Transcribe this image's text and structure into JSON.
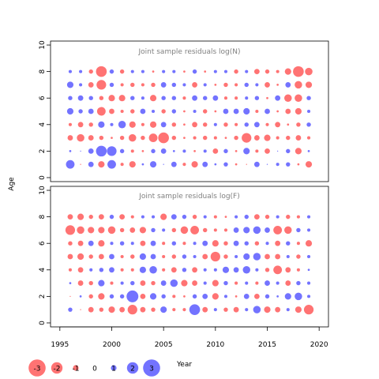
{
  "chart_data": [
    {
      "type": "scatter",
      "title": "Joint sample residuals log(N)",
      "ylabel": "Age",
      "ylim": [
        -0.3,
        10.3
      ],
      "yticks": [
        0,
        2,
        4,
        6,
        8,
        10
      ],
      "xlim": [
        1994.1,
        2020.9
      ],
      "grid": false,
      "years": [
        1996,
        1997,
        1998,
        1999,
        2000,
        2001,
        2002,
        2003,
        2004,
        2005,
        2006,
        2007,
        2008,
        2009,
        2010,
        2011,
        2012,
        2013,
        2014,
        2015,
        2016,
        2017,
        2018,
        2019
      ],
      "ages": [
        1,
        2,
        3,
        4,
        5,
        6,
        7,
        8
      ],
      "residuals": [
        [
          0.8,
          -0.1,
          0.5,
          -0.6,
          0.8,
          -0.3,
          -0.6,
          0.2,
          0.6,
          0.1,
          0.5,
          -0.3,
          -0.6,
          0.5,
          0.2,
          0.4,
          -0.2,
          -0.1,
          0.5,
          0.1,
          0.3,
          0.4,
          -0.2,
          -0.6
        ],
        [
          0.2,
          0.1,
          0.5,
          1.0,
          0.9,
          0.4,
          -0.3,
          -0.2,
          0.4,
          0.5,
          0.2,
          0.3,
          -0.2,
          0.3,
          -0.5,
          0.4,
          -0.2,
          0.6,
          -0.3,
          -0.5,
          0.1,
          0.4,
          -0.6,
          0.2
        ],
        [
          -0.5,
          -0.7,
          -0.5,
          -0.4,
          -0.2,
          -0.4,
          -0.7,
          -0.4,
          -0.8,
          -1.0,
          -0.4,
          -0.2,
          -0.3,
          -0.4,
          -0.3,
          -0.2,
          -0.4,
          -0.9,
          -0.5,
          -0.6,
          -0.3,
          -0.4,
          -0.5,
          -0.3
        ],
        [
          -0.3,
          -0.5,
          -0.4,
          0.6,
          0.3,
          0.7,
          -0.6,
          -0.3,
          -0.6,
          0.5,
          -0.4,
          -0.2,
          -0.5,
          -0.4,
          0.3,
          -0.4,
          -0.3,
          0.4,
          0.5,
          -0.3,
          -0.5,
          -0.2,
          -0.4,
          0.4
        ],
        [
          0.6,
          0.4,
          0.5,
          -0.8,
          -0.5,
          -0.3,
          -0.4,
          0.5,
          0.3,
          -0.4,
          0.4,
          -0.2,
          0.3,
          -0.4,
          -0.2,
          0.5,
          0.5,
          0.6,
          -0.3,
          0.5,
          -0.2,
          -0.5,
          -0.6,
          0.3
        ],
        [
          0.4,
          0.5,
          0.4,
          -0.4,
          -0.6,
          -0.6,
          0.4,
          0.3,
          -0.6,
          0.4,
          0.4,
          -0.3,
          0.5,
          0.4,
          0.5,
          -0.3,
          -0.3,
          0.3,
          0.4,
          -0.2,
          0.5,
          -0.7,
          -0.7,
          0.4
        ],
        [
          0.6,
          0.3,
          -0.5,
          -0.9,
          0.4,
          -0.3,
          -0.4,
          -0.3,
          -0.4,
          0.5,
          0.4,
          0.3,
          -0.5,
          0.3,
          -0.2,
          -0.4,
          -0.3,
          0.4,
          0.3,
          -0.5,
          -0.2,
          0.5,
          -0.7,
          -0.6
        ],
        [
          0.3,
          0.3,
          -0.4,
          -1.0,
          0.4,
          -0.4,
          0.3,
          0.3,
          -0.2,
          0.3,
          0.3,
          -0.2,
          0.4,
          -0.2,
          0.3,
          0.3,
          -0.4,
          0.3,
          -0.5,
          -0.4,
          -0.3,
          -0.6,
          -1.0,
          -0.7
        ]
      ]
    },
    {
      "type": "scatter",
      "title": "Joint sample residuals log(F)",
      "xlabel": "Year",
      "ylim": [
        -0.3,
        10.3
      ],
      "yticks": [
        0,
        2,
        4,
        6,
        8,
        10
      ],
      "xlim": [
        1994.1,
        2020.9
      ],
      "xticks": [
        1995,
        2000,
        2005,
        2010,
        2015,
        2020
      ],
      "grid": false,
      "years": [
        1996,
        1997,
        1998,
        1999,
        2000,
        2001,
        2002,
        2003,
        2004,
        2005,
        2006,
        2007,
        2008,
        2009,
        2010,
        2011,
        2012,
        2013,
        2014,
        2015,
        2016,
        2017,
        2018,
        2019
      ],
      "ages": [
        1,
        2,
        3,
        4,
        5,
        6,
        7,
        8
      ],
      "residuals": [
        [
          0.4,
          -0.1,
          -0.5,
          -0.4,
          -0.6,
          -0.5,
          -0.9,
          -0.5,
          -0.4,
          0.6,
          -0.3,
          -0.3,
          1.0,
          -0.5,
          0.3,
          -0.4,
          -0.5,
          0.3,
          0.7,
          -0.6,
          -0.5,
          0.3,
          -0.6,
          -0.9
        ],
        [
          -0.1,
          0.2,
          -0.4,
          -0.6,
          0.4,
          0.4,
          1.1,
          -0.5,
          0.6,
          0.4,
          -0.3,
          -0.2,
          0.4,
          0.5,
          -0.6,
          0.3,
          -0.2,
          0.5,
          -0.5,
          0.4,
          0.2,
          0.6,
          0.7,
          0.3
        ],
        [
          0.2,
          -0.5,
          -0.4,
          0.6,
          -0.3,
          0.3,
          0.4,
          -0.5,
          -0.4,
          0.5,
          0.7,
          -0.6,
          -0.5,
          0.3,
          -0.6,
          0.4,
          -0.3,
          0.3,
          -0.3,
          0.5,
          0.3,
          -0.5,
          0.4,
          0.3
        ],
        [
          -0.3,
          -0.5,
          0.3,
          0.4,
          0.5,
          -0.3,
          -0.3,
          0.6,
          0.7,
          -0.3,
          -0.5,
          0.4,
          -0.5,
          0.3,
          0.3,
          0.6,
          0.5,
          0.7,
          0.3,
          -0.4,
          -0.8,
          -0.5,
          -0.3,
          0.2
        ],
        [
          -0.5,
          -0.6,
          -0.4,
          -0.5,
          0.5,
          -0.3,
          -0.4,
          0.6,
          0.5,
          -0.3,
          -0.4,
          0.4,
          0.3,
          -0.5,
          -0.9,
          -0.4,
          0.3,
          0.6,
          0.7,
          -0.5,
          -0.5,
          0.3,
          -0.4,
          0.3
        ],
        [
          -0.4,
          -0.5,
          0.5,
          -0.6,
          0.3,
          0.4,
          0.3,
          -0.5,
          0.5,
          -0.3,
          0.4,
          -0.3,
          0.3,
          0.5,
          -0.6,
          -0.4,
          0.5,
          0.4,
          -0.4,
          0.3,
          -0.5,
          0.4,
          -0.3,
          -0.6
        ],
        [
          -0.9,
          -0.7,
          -0.6,
          -0.6,
          -0.7,
          -0.4,
          -0.5,
          -0.6,
          0.4,
          0.3,
          -0.4,
          -0.7,
          -0.8,
          -0.4,
          -0.3,
          -0.3,
          0.5,
          0.6,
          0.7,
          0.5,
          -0.8,
          -0.7,
          0.4,
          0.3
        ],
        [
          -0.5,
          -0.6,
          -0.4,
          -0.5,
          0.4,
          -0.5,
          -0.3,
          0.3,
          0.3,
          -0.6,
          0.5,
          0.4,
          -0.4,
          0.3,
          -0.3,
          -0.2,
          0.3,
          0.4,
          -0.5,
          -0.4,
          0.3,
          -0.4,
          -0.3,
          0.3
        ]
      ]
    }
  ],
  "legend": {
    "placement": "bottom-left",
    "values": [
      -3,
      -2,
      -1,
      0,
      1,
      2,
      3
    ],
    "labels": [
      "-3",
      "-2",
      "-1",
      "0",
      "1",
      "2",
      "3"
    ]
  },
  "colors": {
    "positive": "#0000ff",
    "negative": "#ff0000",
    "text": "#000000",
    "title": "#808080"
  }
}
